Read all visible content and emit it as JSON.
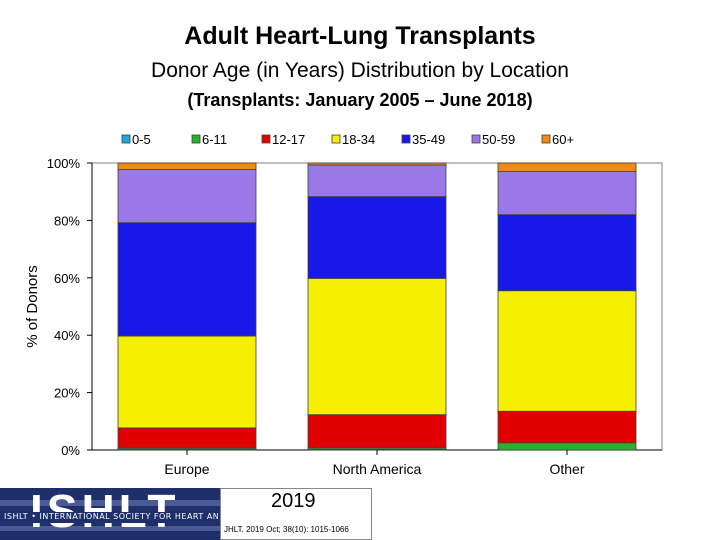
{
  "header": {
    "title": "Adult Heart-Lung Transplants",
    "subtitle": "Donor Age (in Years) Distribution by Location",
    "period": "(Transplants: January 2005 – June 2018)"
  },
  "chart_data": {
    "type": "bar",
    "stacked": true,
    "percent_stacked": true,
    "ylabel": "% of Donors",
    "xlabel": "",
    "ylim": [
      0,
      100
    ],
    "yticks": [
      "0%",
      "20%",
      "40%",
      "60%",
      "80%",
      "100%"
    ],
    "categories": [
      "Europe",
      "North America",
      "Other"
    ],
    "series": [
      {
        "name": "0-5",
        "color": "#22a6dc",
        "values": [
          0.3,
          0.3,
          0.0
        ]
      },
      {
        "name": "6-11",
        "color": "#2db02d",
        "values": [
          0.4,
          0.5,
          2.5
        ]
      },
      {
        "name": "12-17",
        "color": "#e00000",
        "values": [
          7.0,
          11.5,
          11.0
        ]
      },
      {
        "name": "18-34",
        "color": "#f5f000",
        "values": [
          32.0,
          47.5,
          42.0
        ]
      },
      {
        "name": "35-49",
        "color": "#1818e8",
        "values": [
          39.5,
          28.5,
          26.5
        ]
      },
      {
        "name": "50-59",
        "color": "#9a78e8",
        "values": [
          18.5,
          11.0,
          15.0
        ]
      },
      {
        "name": "60+",
        "color": "#f08a10",
        "values": [
          2.3,
          0.7,
          3.0
        ]
      }
    ],
    "legend_position": "top"
  },
  "footer": {
    "logo_text": "ISHLT",
    "logo_subtext": "ISHLT • INTERNATIONAL SOCIETY FOR HEART AND LUNG TRANSPLANTATION",
    "year": "2019",
    "citation": "JHLT. 2019 Oct; 38(10): 1015-1066"
  }
}
